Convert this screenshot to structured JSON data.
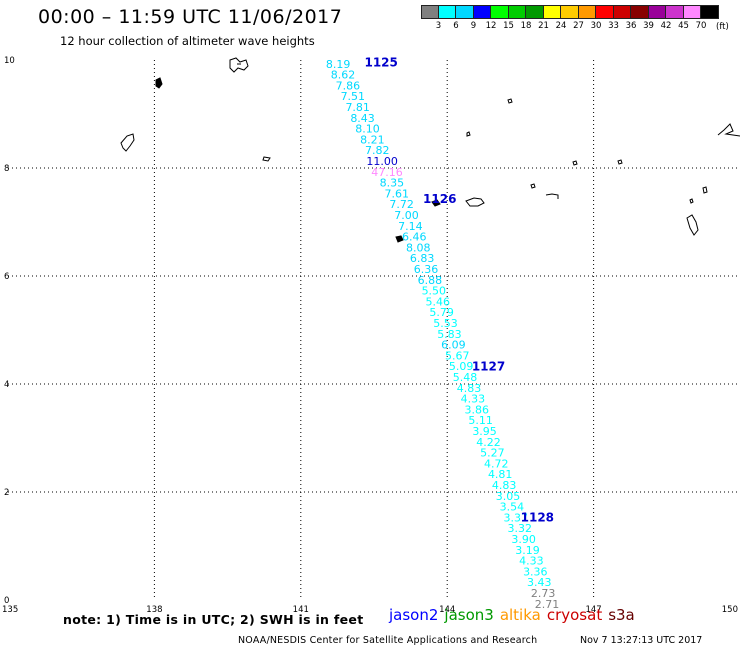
{
  "header": {
    "title": "00:00 – 11:59 UTC 11/06/2017",
    "subtitle": "12 hour collection of altimeter wave heights"
  },
  "legend": {
    "colors": [
      "#808080",
      "#00ffff",
      "#00d8ff",
      "#0000ff",
      "#00ff00",
      "#00cc00",
      "#009900",
      "#ffff00",
      "#ffcc00",
      "#ff9900",
      "#ff0000",
      "#cc0000",
      "#880000",
      "#990099",
      "#cc33cc",
      "#ff88ff",
      "#000000"
    ],
    "labels": [
      "3",
      "6",
      "9",
      "12",
      "15",
      "18",
      "21",
      "24",
      "27",
      "30",
      "33",
      "36",
      "39",
      "42",
      "45",
      "70"
    ],
    "unit": "(ft)"
  },
  "axes": {
    "x_ticks": [
      "135",
      "138",
      "141",
      "144",
      "147",
      "150"
    ],
    "y_ticks": [
      "0",
      "2",
      "4",
      "6",
      "8",
      "10"
    ]
  },
  "chart_data": {
    "type": "scatter",
    "title": "00:00 – 11:59 UTC 11/06/2017",
    "subtitle": "12 hour collection of altimeter wave heights",
    "xlabel": "",
    "ylabel": "",
    "xlim": [
      135,
      150
    ],
    "ylim": [
      0,
      10
    ],
    "grid": true,
    "track": {
      "satellite": "jason2",
      "points": [
        {
          "lon": 141.52,
          "lat": 9.93,
          "swh": "8.19",
          "color": "#00d8ff"
        },
        {
          "lon": 141.62,
          "lat": 9.73,
          "swh": "8.62",
          "color": "#00d8ff"
        },
        {
          "lon": 141.72,
          "lat": 9.53,
          "swh": "7.86",
          "color": "#00d8ff"
        },
        {
          "lon": 141.82,
          "lat": 9.33,
          "swh": "7.51",
          "color": "#00d8ff"
        },
        {
          "lon": 141.92,
          "lat": 9.13,
          "swh": "7.81",
          "color": "#00d8ff"
        },
        {
          "lon": 142.02,
          "lat": 8.93,
          "swh": "8.43",
          "color": "#00d8ff"
        },
        {
          "lon": 142.12,
          "lat": 8.73,
          "swh": "8.10",
          "color": "#00d8ff"
        },
        {
          "lon": 142.22,
          "lat": 8.53,
          "swh": "8.21",
          "color": "#00d8ff"
        },
        {
          "lon": 142.32,
          "lat": 8.33,
          "swh": "7.82",
          "color": "#00d8ff"
        },
        {
          "lon": 142.42,
          "lat": 8.13,
          "swh": "11.00",
          "color": "#0000cc"
        },
        {
          "lon": 142.52,
          "lat": 7.93,
          "swh": "47.16",
          "color": "#ff88ff"
        },
        {
          "lon": 142.62,
          "lat": 7.73,
          "swh": "8.35",
          "color": "#00d8ff"
        },
        {
          "lon": 142.72,
          "lat": 7.53,
          "swh": "7.61",
          "color": "#00d8ff"
        },
        {
          "lon": 142.82,
          "lat": 7.33,
          "swh": "7.72",
          "color": "#00d8ff"
        },
        {
          "lon": 142.92,
          "lat": 7.13,
          "swh": "7.00",
          "color": "#00d8ff"
        },
        {
          "lon": 143.0,
          "lat": 6.93,
          "swh": "7.14",
          "color": "#00d8ff"
        },
        {
          "lon": 143.08,
          "lat": 6.73,
          "swh": "6.46",
          "color": "#00d8ff"
        },
        {
          "lon": 143.16,
          "lat": 6.53,
          "swh": "8.08",
          "color": "#00d8ff"
        },
        {
          "lon": 143.24,
          "lat": 6.33,
          "swh": "6.83",
          "color": "#00d8ff"
        },
        {
          "lon": 143.32,
          "lat": 6.13,
          "swh": "6.36",
          "color": "#00d8ff"
        },
        {
          "lon": 143.4,
          "lat": 5.93,
          "swh": "6.88",
          "color": "#00d8ff"
        },
        {
          "lon": 143.48,
          "lat": 5.73,
          "swh": "5.50",
          "color": "#00ffff"
        },
        {
          "lon": 143.56,
          "lat": 5.53,
          "swh": "5.46",
          "color": "#00ffff"
        },
        {
          "lon": 143.64,
          "lat": 5.33,
          "swh": "5.79",
          "color": "#00ffff"
        },
        {
          "lon": 143.72,
          "lat": 5.13,
          "swh": "5.53",
          "color": "#00ffff"
        },
        {
          "lon": 143.8,
          "lat": 4.93,
          "swh": "5.83",
          "color": "#00ffff"
        },
        {
          "lon": 143.88,
          "lat": 4.73,
          "swh": "6.09",
          "color": "#00d8ff"
        },
        {
          "lon": 143.96,
          "lat": 4.53,
          "swh": "5.67",
          "color": "#00ffff"
        },
        {
          "lon": 144.04,
          "lat": 4.33,
          "swh": "5.09",
          "color": "#00ffff"
        },
        {
          "lon": 144.12,
          "lat": 4.13,
          "swh": "5.48",
          "color": "#00ffff"
        },
        {
          "lon": 144.2,
          "lat": 3.93,
          "swh": "4.83",
          "color": "#00ffff"
        },
        {
          "lon": 144.28,
          "lat": 3.73,
          "swh": "4.33",
          "color": "#00ffff"
        },
        {
          "lon": 144.36,
          "lat": 3.53,
          "swh": "3.86",
          "color": "#00ffff"
        },
        {
          "lon": 144.44,
          "lat": 3.33,
          "swh": "5.11",
          "color": "#00ffff"
        },
        {
          "lon": 144.52,
          "lat": 3.13,
          "swh": "3.95",
          "color": "#00ffff"
        },
        {
          "lon": 144.6,
          "lat": 2.93,
          "swh": "4.22",
          "color": "#00ffff"
        },
        {
          "lon": 144.68,
          "lat": 2.73,
          "swh": "5.27",
          "color": "#00ffff"
        },
        {
          "lon": 144.76,
          "lat": 2.53,
          "swh": "4.72",
          "color": "#00ffff"
        },
        {
          "lon": 144.84,
          "lat": 2.33,
          "swh": "4.81",
          "color": "#00ffff"
        },
        {
          "lon": 144.92,
          "lat": 2.13,
          "swh": "4.83",
          "color": "#00ffff"
        },
        {
          "lon": 145.0,
          "lat": 1.93,
          "swh": "3.05",
          "color": "#00ffff"
        },
        {
          "lon": 145.08,
          "lat": 1.73,
          "swh": "3.54",
          "color": "#00ffff"
        },
        {
          "lon": 145.16,
          "lat": 1.53,
          "swh": "3.37",
          "color": "#00ffff"
        },
        {
          "lon": 145.24,
          "lat": 1.33,
          "swh": "3.32",
          "color": "#00ffff"
        },
        {
          "lon": 145.32,
          "lat": 1.13,
          "swh": "3.90",
          "color": "#00ffff"
        },
        {
          "lon": 145.4,
          "lat": 0.93,
          "swh": "3.19",
          "color": "#00ffff"
        },
        {
          "lon": 145.48,
          "lat": 0.73,
          "swh": "4.33",
          "color": "#00ffff"
        },
        {
          "lon": 145.56,
          "lat": 0.53,
          "swh": "3.36",
          "color": "#00ffff"
        },
        {
          "lon": 145.64,
          "lat": 0.33,
          "swh": "3.43",
          "color": "#00ffff"
        },
        {
          "lon": 145.72,
          "lat": 0.13,
          "swh": "2.73",
          "color": "#808080"
        },
        {
          "lon": 145.8,
          "lat": -0.07,
          "swh": "2.71",
          "color": "#808080"
        }
      ]
    },
    "time_labels": [
      {
        "text": "1125",
        "lon": 142.1,
        "lat": 9.95
      },
      {
        "text": "1126",
        "lon": 143.3,
        "lat": 7.43
      },
      {
        "text": "1127",
        "lon": 144.3,
        "lat": 4.32
      },
      {
        "text": "1128",
        "lon": 145.3,
        "lat": 1.53
      }
    ]
  },
  "footer": {
    "note": "note: 1) Time is in UTC; 2) SWH is in feet",
    "satellites": [
      {
        "name": "jason2",
        "color": "#0000ff"
      },
      {
        "name": "jason3",
        "color": "#009900"
      },
      {
        "name": "altika",
        "color": "#ff9900"
      },
      {
        "name": "cryosat",
        "color": "#cc0000"
      },
      {
        "name": "s3a",
        "color": "#660000"
      }
    ],
    "credit": "NOAA/NESDIS Center for Satellite Applications and Research",
    "timestamp": "Nov  7 13:27:13 UTC 2017"
  }
}
